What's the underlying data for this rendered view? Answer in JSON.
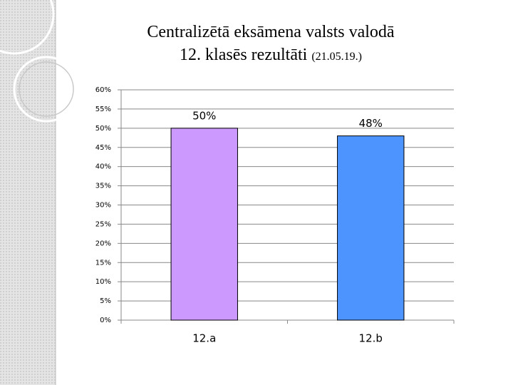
{
  "chart_data": {
    "type": "bar",
    "title_lines": [
      "Centralizētā eksāmena valsts valodā",
      "12. klasēs rezultāti"
    ],
    "title_date": "(21.05.19.)",
    "categories": [
      "12.a",
      "12.b"
    ],
    "values": [
      50,
      48
    ],
    "value_labels": [
      "50%",
      "48%"
    ],
    "colors": [
      "#cc99ff",
      "#4d94ff"
    ],
    "ylim": [
      0,
      60
    ],
    "yticks": [
      {
        "value": 0,
        "label": "0%"
      },
      {
        "value": 5,
        "label": "5%"
      },
      {
        "value": 10,
        "label": "10%"
      },
      {
        "value": 15,
        "label": "15%"
      },
      {
        "value": 20,
        "label": "20%"
      },
      {
        "value": 25,
        "label": "25%"
      },
      {
        "value": 30,
        "label": "30%"
      },
      {
        "value": 35,
        "label": "35%"
      },
      {
        "value": 40,
        "label": "40%"
      },
      {
        "value": 45,
        "label": "45%"
      },
      {
        "value": 50,
        "label": "50%"
      },
      {
        "value": 55,
        "label": "55%"
      },
      {
        "value": 60,
        "label": "60%"
      }
    ],
    "grid": true
  }
}
